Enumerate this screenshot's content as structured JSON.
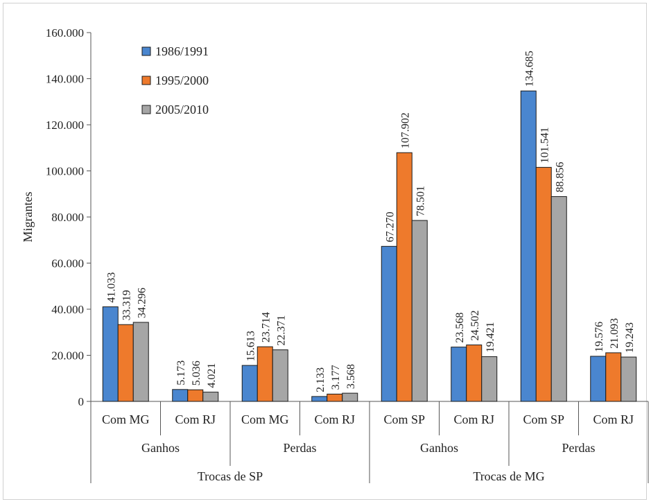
{
  "chart_data": {
    "type": "bar",
    "ylabel": "Migrantes",
    "ylim": [
      0,
      160000
    ],
    "yticks": [
      0,
      20000,
      40000,
      60000,
      80000,
      100000,
      120000,
      140000,
      160000
    ],
    "ytick_labels": [
      "0",
      "20.000",
      "40.000",
      "60.000",
      "80.000",
      "100.000",
      "120.000",
      "140.000",
      "160.000"
    ],
    "categories": [
      "Com MG",
      "Com RJ",
      "Com MG",
      "Com RJ",
      "Com SP",
      "Com RJ",
      "Com SP",
      "Com RJ"
    ],
    "groups_level2": [
      "Ganhos",
      "Perdas",
      "Ganhos",
      "Perdas"
    ],
    "groups_level1": [
      "Trocas de SP",
      "Trocas de MG"
    ],
    "legend_position": "top-left",
    "series": [
      {
        "name": "1986/1991",
        "color": "#4a86cf",
        "values": [
          41033,
          5173,
          15613,
          2133,
          67270,
          23568,
          134685,
          19576
        ],
        "labels": [
          "41.033",
          "5.173",
          "15.613",
          "2.133",
          "67.270",
          "23.568",
          "134.685",
          "19.576"
        ]
      },
      {
        "name": "1995/2000",
        "color": "#ee7a2c",
        "values": [
          33319,
          5036,
          23714,
          3177,
          107902,
          24502,
          101541,
          21093
        ],
        "labels": [
          "33.319",
          "5.036",
          "23.714",
          "3.177",
          "107.902",
          "24.502",
          "101.541",
          "21.093"
        ]
      },
      {
        "name": "2005/2010",
        "color": "#a6a6a6",
        "values": [
          34296,
          4021,
          22371,
          3568,
          78501,
          19421,
          88856,
          19243
        ],
        "labels": [
          "34.296",
          "4.021",
          "22.371",
          "3.568",
          "78.501",
          "19.421",
          "88.856",
          "19.243"
        ]
      }
    ]
  }
}
